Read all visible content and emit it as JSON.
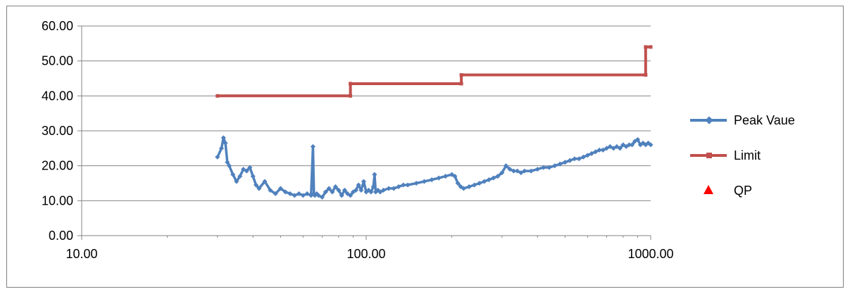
{
  "chart_data": {
    "type": "line",
    "title": "",
    "xlabel": "",
    "ylabel": "",
    "x_scale": "log",
    "xlim": [
      10,
      1000
    ],
    "ylim": [
      0,
      60
    ],
    "x_ticks": [
      10,
      100,
      1000
    ],
    "x_tick_labels": [
      "10.00",
      "100.00",
      "1000.00"
    ],
    "y_ticks": [
      0,
      10,
      20,
      30,
      40,
      50,
      60
    ],
    "y_tick_labels": [
      "0.00",
      "10.00",
      "20.00",
      "30.00",
      "40.00",
      "50.00",
      "60.00"
    ],
    "grid": "horizontal",
    "legend_position": "right",
    "series": [
      {
        "name": "Peak Vaue",
        "color": "#4f81bd",
        "marker": "diamond",
        "x": [
          30,
          31,
          31.5,
          32,
          32.5,
          33,
          34,
          35,
          36,
          37,
          38,
          39,
          40,
          41,
          42,
          44,
          46,
          48,
          50,
          52,
          54,
          56,
          58,
          60,
          62,
          64,
          65,
          65.5,
          66,
          67,
          68,
          70,
          72,
          74,
          76,
          78,
          80,
          82,
          84,
          86,
          88,
          90,
          92,
          94,
          96,
          98,
          100,
          102,
          104,
          106,
          107,
          108,
          110,
          112,
          115,
          120,
          125,
          130,
          135,
          140,
          150,
          160,
          170,
          180,
          190,
          200,
          205,
          210,
          215,
          220,
          230,
          240,
          250,
          260,
          270,
          280,
          290,
          300,
          310,
          320,
          330,
          340,
          350,
          360,
          380,
          400,
          420,
          440,
          460,
          480,
          500,
          520,
          540,
          560,
          580,
          600,
          620,
          640,
          660,
          680,
          700,
          720,
          740,
          760,
          780,
          800,
          820,
          840,
          860,
          880,
          900,
          920,
          940,
          960,
          980,
          1000
        ],
        "y": [
          22.5,
          25,
          28,
          26.5,
          21,
          20,
          17.5,
          15.5,
          17,
          19,
          18.5,
          19.5,
          17,
          14.5,
          13.5,
          15.5,
          13,
          12,
          13.5,
          12.5,
          12,
          11.5,
          12,
          11.5,
          12,
          11.5,
          25.5,
          12,
          11.5,
          12,
          11.5,
          11,
          12.5,
          13.5,
          12.5,
          14,
          13,
          11.5,
          13,
          12,
          11.5,
          12.5,
          13,
          14.5,
          13,
          15.5,
          12.5,
          13,
          12.5,
          14,
          17.5,
          12.5,
          13,
          12.5,
          13,
          13.5,
          13.5,
          14,
          14.5,
          14.5,
          15,
          15.5,
          16,
          16.5,
          17,
          17.5,
          17,
          15,
          14,
          13.5,
          14,
          14.5,
          15,
          15.5,
          16,
          16.5,
          17,
          18,
          20,
          19,
          18.5,
          18.5,
          18,
          18.5,
          18.5,
          19,
          19.5,
          19.5,
          20,
          20.5,
          21,
          21.5,
          22,
          22,
          22.5,
          23,
          23.5,
          24,
          24.5,
          24.5,
          25,
          25.5,
          25,
          25.5,
          25,
          26,
          25.5,
          26,
          26,
          27,
          27.5,
          26,
          26.5,
          26,
          26.5,
          26
        ]
      },
      {
        "name": "Limit",
        "color": "#c0504d",
        "marker": "square",
        "x": [
          30,
          88,
          88,
          216,
          216,
          960,
          960,
          1000
        ],
        "y": [
          40,
          40,
          43.5,
          43.5,
          46,
          46,
          54,
          54
        ]
      },
      {
        "name": "QP",
        "color": "#ff0000",
        "marker": "triangle",
        "x": [],
        "y": []
      }
    ]
  }
}
